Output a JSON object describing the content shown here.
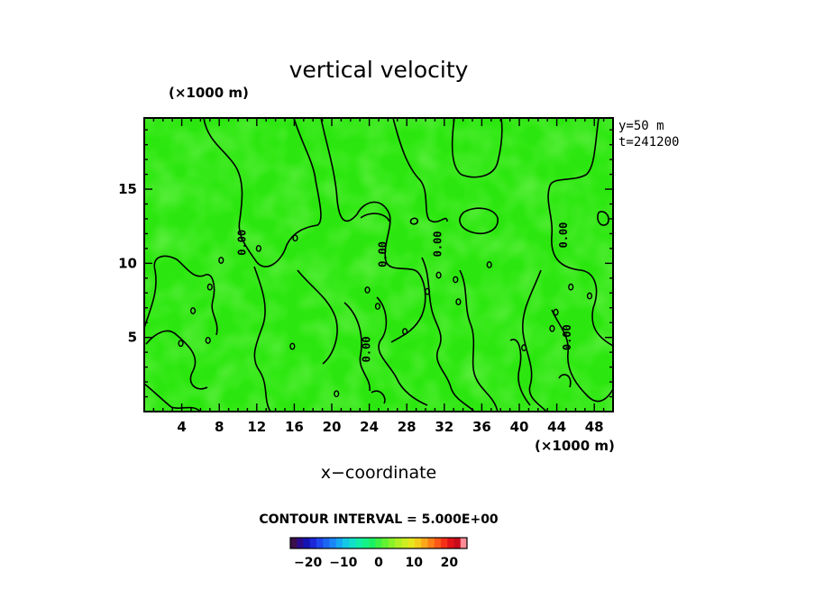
{
  "chart_data": {
    "type": "heatmap",
    "title": "vertical velocity",
    "xlabel": "x−coordinate",
    "x_unit": "(×1000 m)",
    "y_unit": "(×1000 m)",
    "xlim": [
      0,
      50
    ],
    "ylim": [
      0,
      19.8
    ],
    "x_ticks": [
      4,
      8,
      12,
      16,
      20,
      24,
      28,
      32,
      36,
      40,
      44,
      48
    ],
    "y_ticks": [
      5,
      10,
      15
    ],
    "x_tick_labels": [
      "4",
      "8",
      "12",
      "16",
      "20",
      "24",
      "28",
      "32",
      "36",
      "40",
      "44",
      "48"
    ],
    "y_tick_labels": [
      "5",
      "10",
      "15"
    ],
    "info": [
      "y=50 m",
      "t=241200"
    ],
    "contour_interval_text": "CONTOUR INTERVAL = 5.000E+00",
    "contour_label": "0.00",
    "zero_contour_labels": [
      {
        "x": 10.8,
        "y": 11.4
      },
      {
        "x": 24.1,
        "y": 4.2
      },
      {
        "x": 25.8,
        "y": 10.6
      },
      {
        "x": 31.7,
        "y": 11.3
      },
      {
        "x": 45.1,
        "y": 11.9
      },
      {
        "x": 45.5,
        "y": 5.0
      }
    ],
    "field_description": "near-zero vertical velocity everywhere; the zero contour meanders through the domain",
    "colorbar": {
      "range": [
        -25,
        25
      ],
      "tick_values": [
        -20,
        -10,
        0,
        10,
        20
      ],
      "tick_labels": [
        "−20",
        "−10",
        "0",
        "10",
        "20"
      ],
      "colors": [
        "#3a0f4a",
        "#2b0a8a",
        "#1414b4",
        "#1c28d8",
        "#1e46ee",
        "#1c66f4",
        "#1a86f6",
        "#16a8f2",
        "#12c8e6",
        "#12e0c8",
        "#12eea8",
        "#14f286",
        "#1af064",
        "#3ef044",
        "#62f232",
        "#8af228",
        "#aef024",
        "#ccee22",
        "#e8e61e",
        "#f6cc1c",
        "#fca81a",
        "#fe8018",
        "#fc5818",
        "#f43018",
        "#e01418",
        "#c80c1c",
        "#ff8c96"
      ]
    }
  }
}
